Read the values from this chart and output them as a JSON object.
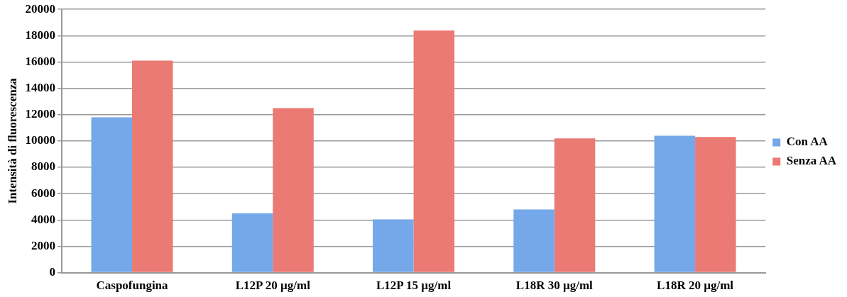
{
  "chart_data": {
    "type": "bar",
    "ylabel": "Intensità di fluorescenza",
    "categories": [
      "Caspofungina",
      "L12P 20 µg/ml",
      "L12P 15 µg/ml",
      "L18R 30 µg/ml",
      "L18R 20 µg/ml"
    ],
    "series": [
      {
        "name": "Con AA",
        "color": "#74a8e8",
        "values": [
          11800,
          4500,
          4050,
          4800,
          10400
        ]
      },
      {
        "name": "Senza AA",
        "color": "#ea7a73",
        "values": [
          16100,
          12500,
          18400,
          10200,
          10300
        ]
      }
    ],
    "ylim": [
      0,
      20000
    ],
    "yticks": [
      0,
      2000,
      4000,
      6000,
      8000,
      10000,
      12000,
      14000,
      16000,
      18000,
      20000
    ],
    "grid": "y",
    "legend": "right"
  }
}
